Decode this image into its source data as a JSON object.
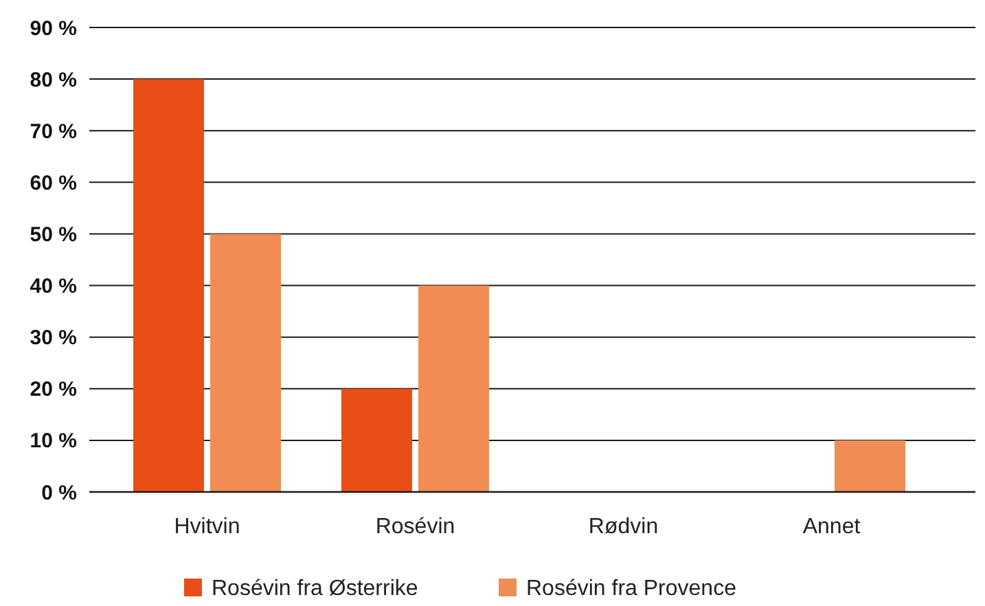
{
  "chart_data": {
    "type": "bar",
    "categories": [
      "Hvitvin",
      "Rosévin",
      "Rødvin",
      "Annet"
    ],
    "series": [
      {
        "name": "Rosévin fra Østerrike",
        "color": "#e84e16",
        "values": [
          80,
          20,
          0,
          0
        ]
      },
      {
        "name": "Rosévin fra Provence",
        "color": "#f18c55",
        "values": [
          50,
          40,
          0,
          10
        ]
      }
    ],
    "ylim": [
      0,
      90
    ],
    "yticks": [
      {
        "value": 0,
        "label": "0 %"
      },
      {
        "value": 10,
        "label": "10 %"
      },
      {
        "value": 20,
        "label": "20 %"
      },
      {
        "value": 30,
        "label": "30 %"
      },
      {
        "value": 40,
        "label": "40 %"
      },
      {
        "value": 50,
        "label": "50 %"
      },
      {
        "value": 60,
        "label": "60 %"
      },
      {
        "value": 70,
        "label": "70 %"
      },
      {
        "value": 80,
        "label": "80 %"
      },
      {
        "value": 90,
        "label": "90 %"
      }
    ],
    "grid": "y",
    "legend": "bottom"
  }
}
